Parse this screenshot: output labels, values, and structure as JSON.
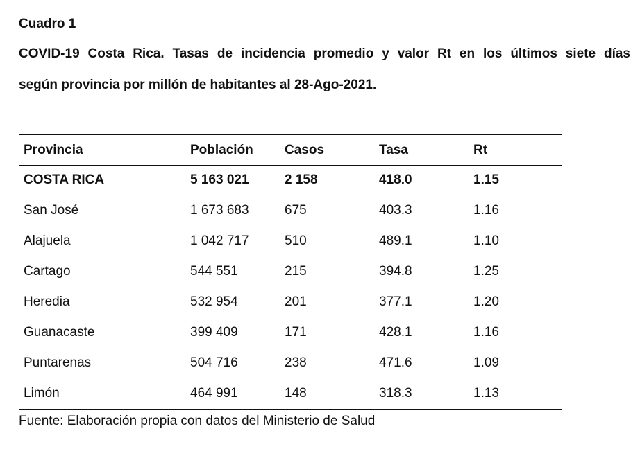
{
  "document": {
    "label": "Cuadro 1",
    "caption_line1": "COVID-19 Costa Rica. Tasas de incidencia promedio y valor Rt en los últimos siete días",
    "caption_line2": "según provincia por millón de habitantes al 28-Ago-2021.",
    "source": "Fuente: Elaboración propia con datos del Ministerio de Salud"
  },
  "table": {
    "headers": [
      "Provincia",
      "Población",
      "Casos",
      "Tasa",
      "Rt"
    ],
    "total": [
      "COSTA RICA",
      "5 163 021",
      "2 158",
      "418.0",
      "1.15"
    ],
    "rows": [
      [
        "San José",
        "1 673 683",
        "675",
        "403.3",
        "1.16"
      ],
      [
        "Alajuela",
        "1 042 717",
        "510",
        "489.1",
        "1.10"
      ],
      [
        "Cartago",
        "544 551",
        "215",
        "394.8",
        "1.25"
      ],
      [
        "Heredia",
        "532 954",
        "201",
        "377.1",
        "1.20"
      ],
      [
        "Guanacaste",
        "399 409",
        "171",
        "428.1",
        "1.16"
      ],
      [
        "Puntarenas",
        "504 716",
        "238",
        "471.6",
        "1.09"
      ],
      [
        "Limón",
        "464 991",
        "148",
        "318.3",
        "1.13"
      ]
    ]
  }
}
